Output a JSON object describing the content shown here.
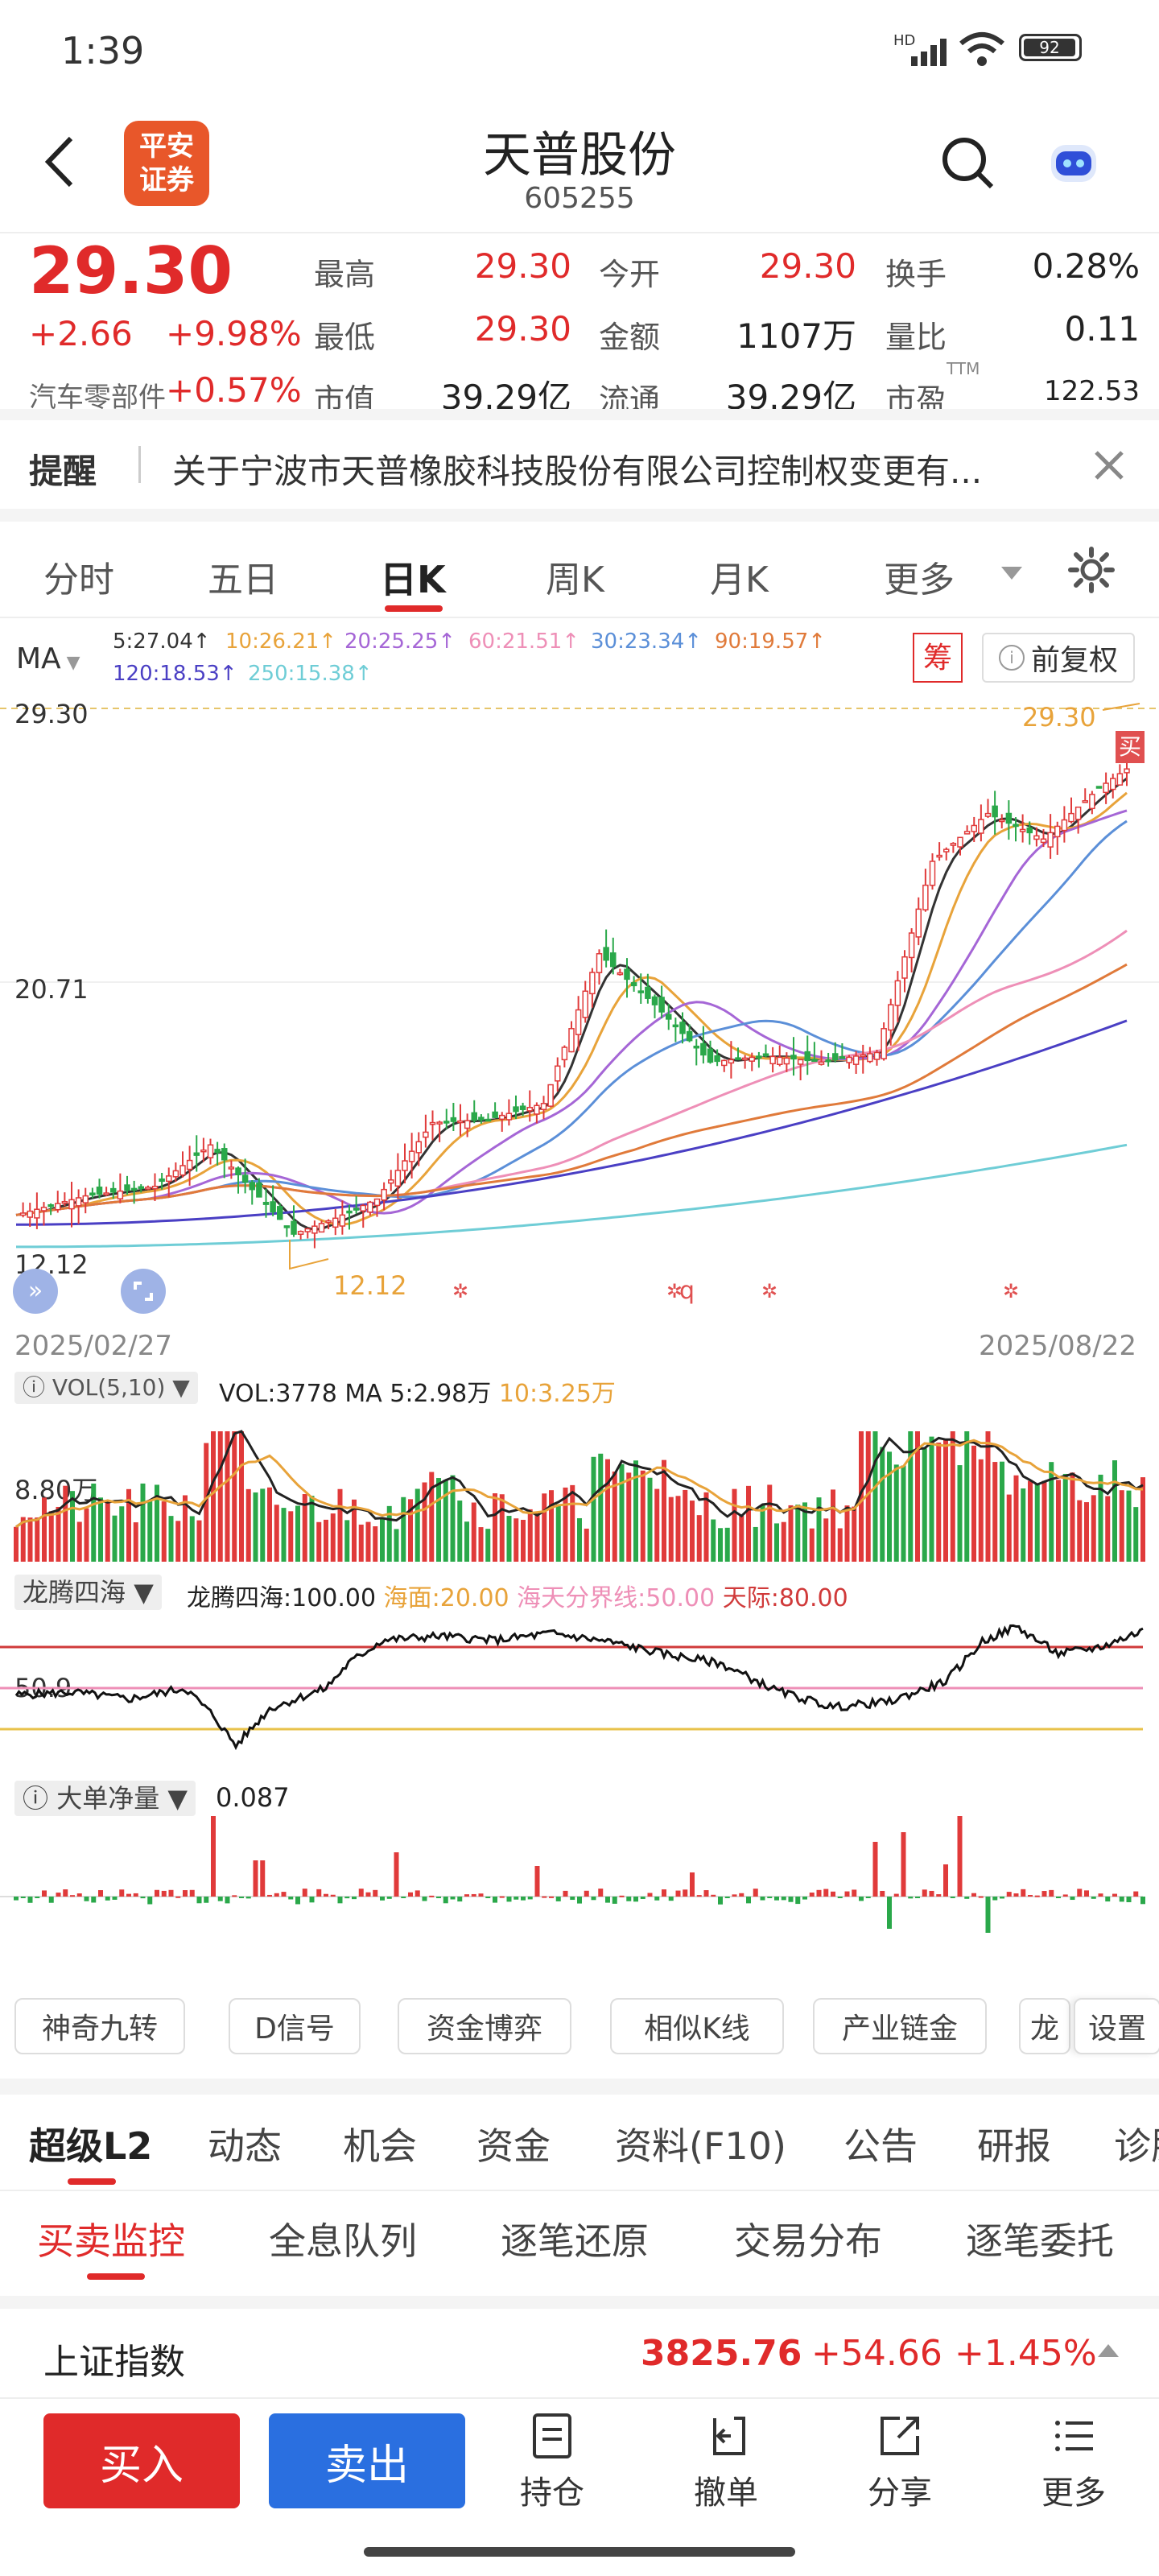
{
  "status": {
    "time": "1:39",
    "battery": "92",
    "net": "HD"
  },
  "header": {
    "broker_logo": "平安证券",
    "stock_name": "天普股份",
    "stock_code": "605255"
  },
  "quote": {
    "price": "29.30",
    "change": "+2.66",
    "change_pct": "+9.98%",
    "sector_label": "汽车零部件",
    "sector_pct": "+0.57%",
    "high_label": "最高",
    "high": "29.30",
    "open_label": "今开",
    "open": "29.30",
    "turnover_label": "换手",
    "turnover": "0.28%",
    "low_label": "最低",
    "low": "29.30",
    "amount_label": "金额",
    "amount": "1107万",
    "vol_ratio_label": "量比",
    "vol_ratio": "0.11",
    "mktcap_label": "市值",
    "mktcap": "39.29亿",
    "float_label": "流通",
    "float": "39.29亿",
    "pe_label": "市盈",
    "pe_sup": "TTM",
    "pe": "122.53"
  },
  "notice": {
    "label": "提醒",
    "text": "关于宁波市天普橡胶科技股份有限公司控制权变更有..."
  },
  "chart_tabs": [
    "分时",
    "五日",
    "日K",
    "周K",
    "月K",
    "更多"
  ],
  "active_tab": "日K",
  "ma_legend": {
    "ma_label": "MA",
    "items": [
      {
        "text": "5:27.04↑",
        "color": "#333333"
      },
      {
        "text": "10:26.21↑",
        "color": "#e8a33a"
      },
      {
        "text": "20:25.25↑",
        "color": "#a566d6"
      },
      {
        "text": "60:21.51↑",
        "color": "#ee8fb7"
      },
      {
        "text": "30:23.34↑",
        "color": "#5b8fd8"
      },
      {
        "text": "90:19.57↑",
        "color": "#e07a3a"
      },
      {
        "text": "120:18.53↑",
        "color": "#4a3fc4"
      },
      {
        "text": "250:15.38↑",
        "color": "#6fcdd6"
      }
    ],
    "chip_label": "筹",
    "adjust_label": "前复权"
  },
  "chart_data": {
    "type": "line",
    "x_start": "2025/02/27",
    "x_end": "2025/08/22",
    "y_labels": [
      "29.30",
      "20.71",
      "12.12"
    ],
    "high_marker": "29.30",
    "low_marker": "12.12",
    "buy_marker": "买",
    "event_markers": [
      "q"
    ]
  },
  "vol": {
    "label": "VOL(5,10)",
    "value": "VOL:3778",
    "ma5": "MA 5:2.98万",
    "ma10": "10:3.25万",
    "axis": "8.80万"
  },
  "lths": {
    "label": "龙腾四海",
    "value": "龙腾四海:100.00",
    "sea": "海面:20.00",
    "line": "海天分界线:50.00",
    "sky": "天际:80.00",
    "axis": "50.9"
  },
  "big": {
    "label": "大单净量",
    "value": "0.087"
  },
  "chips": [
    "神奇九转",
    "D信号",
    "资金博弈",
    "相似K线",
    "产业链金",
    "龙",
    "设置"
  ],
  "main_tabs": [
    "超级L2",
    "动态",
    "机会",
    "资金",
    "资料(F10)",
    "公告",
    "研报",
    "诊股"
  ],
  "sub_tabs": [
    "买卖监控",
    "全息队列",
    "逐笔还原",
    "交易分布",
    "逐笔委托"
  ],
  "index": {
    "name": "上证指数",
    "value": "3825.76",
    "change": "+54.66",
    "pct": "+1.45%"
  },
  "bottom": {
    "buy": "买入",
    "sell": "卖出",
    "tools": [
      "持仓",
      "撤单",
      "分享",
      "更多"
    ]
  }
}
